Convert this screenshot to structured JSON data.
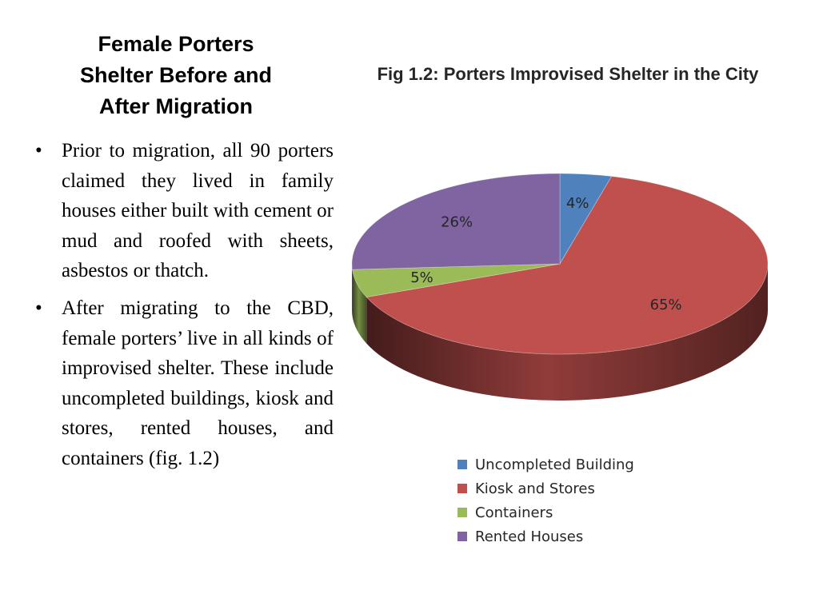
{
  "slide": {
    "title_lines": [
      "Female Porters",
      "Shelter  Before and",
      "After Migration"
    ],
    "bullets": [
      "Prior to migration,  all 90 porters claimed they lived in family houses either built with cement or mud and roofed with sheets, asbestos or thatch.",
      "After migrating to the CBD, female porters’ live in all kinds of improvised shelter.  These include uncompleted buildings, kiosk and stores, rented houses,  and containers (fig. 1.2)"
    ]
  },
  "chart_data": {
    "type": "pie",
    "title": "Fig 1.2: Porters Improvised Shelter in the City",
    "categories": [
      "Uncompleted Building",
      "Kiosk and Stores",
      "Containers",
      "Rented Houses"
    ],
    "values": [
      4,
      65,
      5,
      26
    ],
    "labels": [
      "4%",
      "65%",
      "5%",
      "26%"
    ],
    "colors": [
      "#4F81BD",
      "#C0504D",
      "#9BBB59",
      "#8064A2"
    ],
    "legend_position": "bottom",
    "style": "3d"
  }
}
